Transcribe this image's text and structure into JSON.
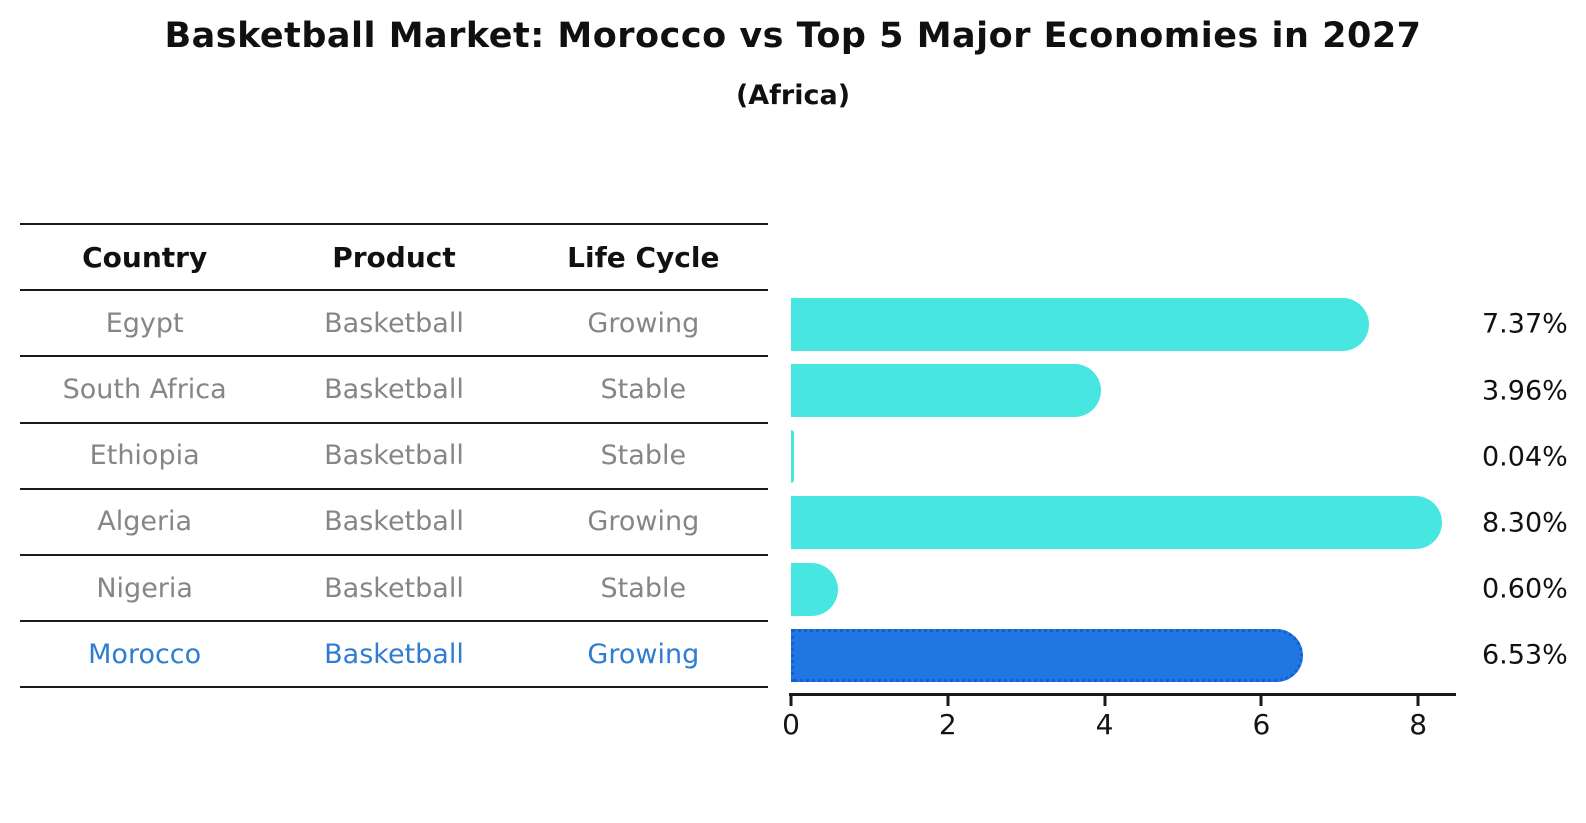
{
  "title": "Basketball Market: Morocco vs Top 5 Major Economies in 2027",
  "subtitle": "(Africa)",
  "table": {
    "headers": [
      "Country",
      "Product",
      "Life Cycle"
    ],
    "rows": [
      {
        "country": "Egypt",
        "product": "Basketball",
        "life_cycle": "Growing",
        "highlight": false
      },
      {
        "country": "South Africa",
        "product": "Basketball",
        "life_cycle": "Stable",
        "highlight": false
      },
      {
        "country": "Ethiopia",
        "product": "Basketball",
        "life_cycle": "Stable",
        "highlight": false
      },
      {
        "country": "Algeria",
        "product": "Basketball",
        "life_cycle": "Growing",
        "highlight": false
      },
      {
        "country": "Nigeria",
        "product": "Basketball",
        "life_cycle": "Stable",
        "highlight": false
      },
      {
        "country": "Morocco",
        "product": "Basketball",
        "life_cycle": "Growing",
        "highlight": true
      }
    ]
  },
  "chart_data": {
    "type": "bar",
    "orientation": "horizontal",
    "title": "Basketball Market: Morocco vs Top 5 Major Economies in 2027",
    "subtitle": "(Africa)",
    "categories": [
      "Egypt",
      "South Africa",
      "Ethiopia",
      "Algeria",
      "Nigeria",
      "Morocco"
    ],
    "values": [
      7.37,
      3.96,
      0.04,
      8.3,
      0.6,
      6.53
    ],
    "value_labels": [
      "7.37%",
      "3.96%",
      "0.04%",
      "8.30%",
      "0.60%",
      "6.53%"
    ],
    "xlabel": "",
    "ylabel": "",
    "xlim": [
      0,
      8.5
    ],
    "x_ticks": [
      0,
      2,
      4,
      6,
      8
    ],
    "x_tick_labels": [
      "0",
      "2",
      "4",
      "6",
      "8"
    ],
    "grid": false,
    "legend": false,
    "highlight_index": 5,
    "bar_color": "#48e6e0",
    "highlight_color": "#2077e4",
    "highlight_border_color": "#1460d2",
    "highlight_border_style": "dotted"
  },
  "colors": {
    "bar_cyan": "#48e6e0",
    "bar_blue": "#2077e4",
    "row_text_gray": "#868686",
    "highlight_text_blue": "#2e7dd1",
    "header_text": "#111111",
    "axis_line": "#1a1a1a"
  }
}
